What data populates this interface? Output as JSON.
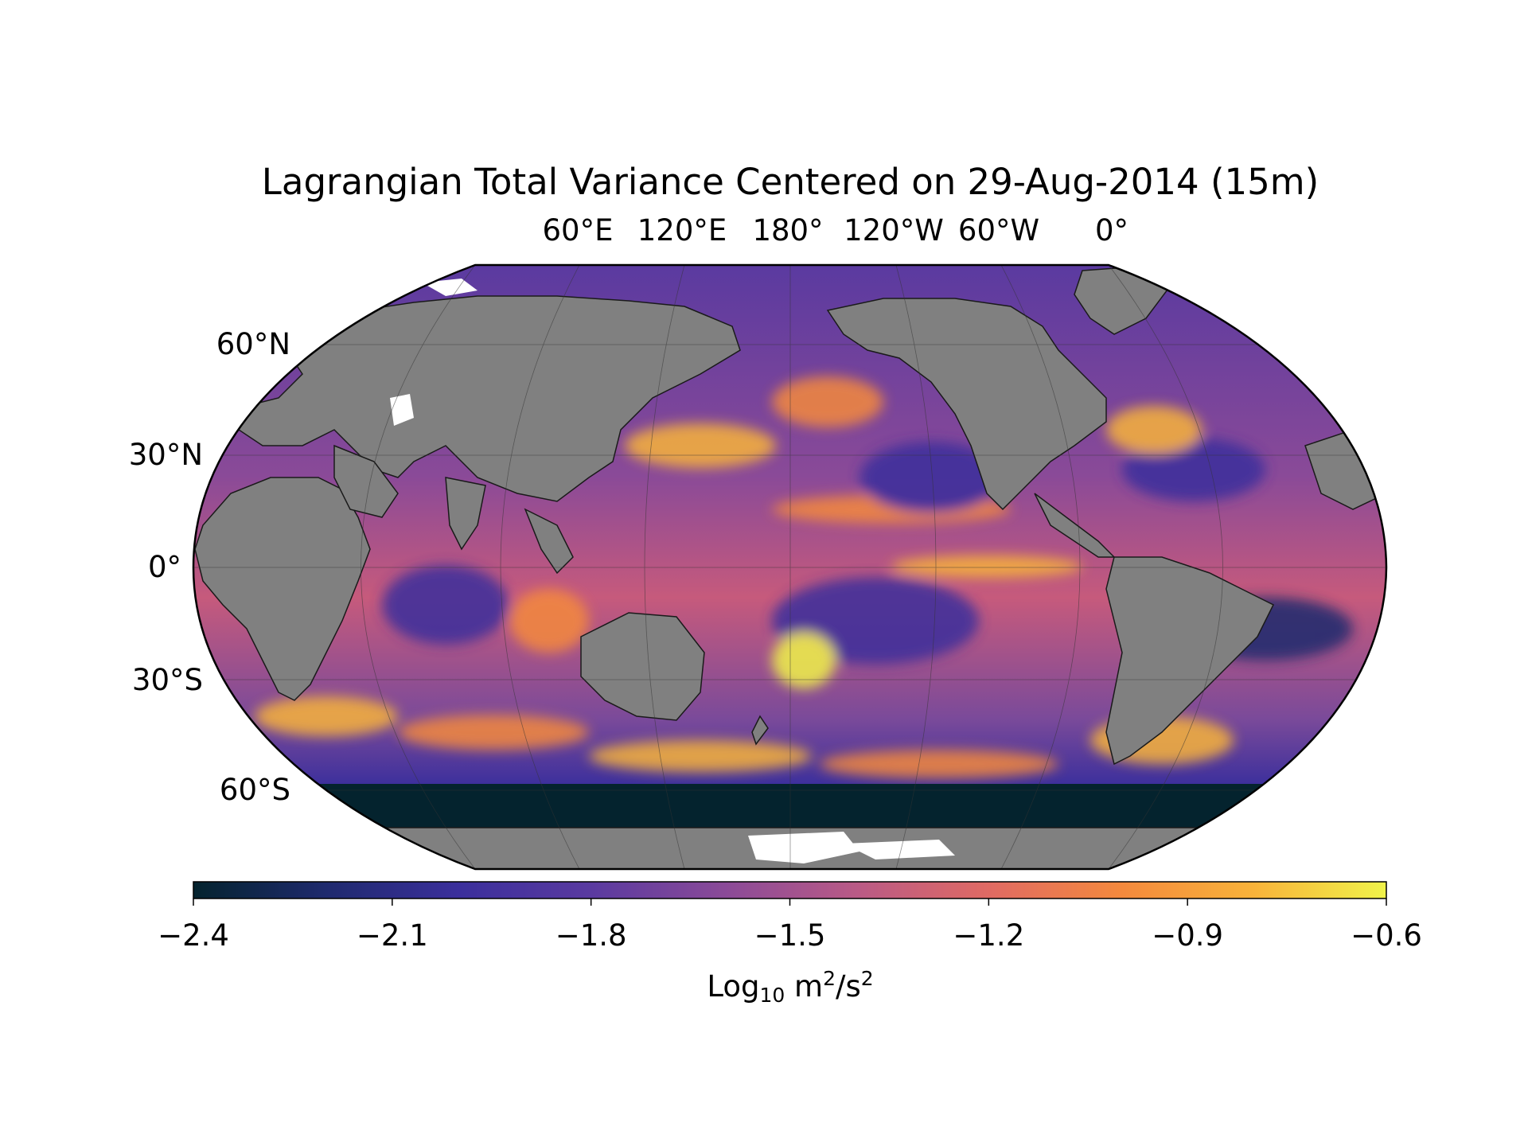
{
  "title": "Lagrangian Total Variance Centered on 29-Aug-2014 (15m)",
  "projection": "Robinson",
  "central_longitude": 180,
  "colormap": "thermal",
  "colors": {
    "land": "#808080",
    "ice": "#ffffff",
    "colormap_stops": [
      "#04232e",
      "#1f2a6e",
      "#3b2f9c",
      "#5a3aa0",
      "#8a4a98",
      "#b95a86",
      "#e06a63",
      "#f4893d",
      "#f8b33a",
      "#f0f34a"
    ]
  },
  "lon_labels": [
    "60°E",
    "120°E",
    "180°",
    "120°W",
    "60°W",
    "0°"
  ],
  "lat_labels": [
    "60°N",
    "30°N",
    "0°",
    "30°S",
    "60°S"
  ],
  "colorbar": {
    "min": -2.4,
    "max": -0.6,
    "ticks": [
      "−2.4",
      "−2.1",
      "−1.8",
      "−1.5",
      "−1.2",
      "−0.9",
      "−0.6"
    ],
    "label_base": "Log",
    "label_sub": "10",
    "label_unit_m": " m",
    "label_sup1": "2",
    "label_unit_s": "/s",
    "label_sup2": "2"
  }
}
